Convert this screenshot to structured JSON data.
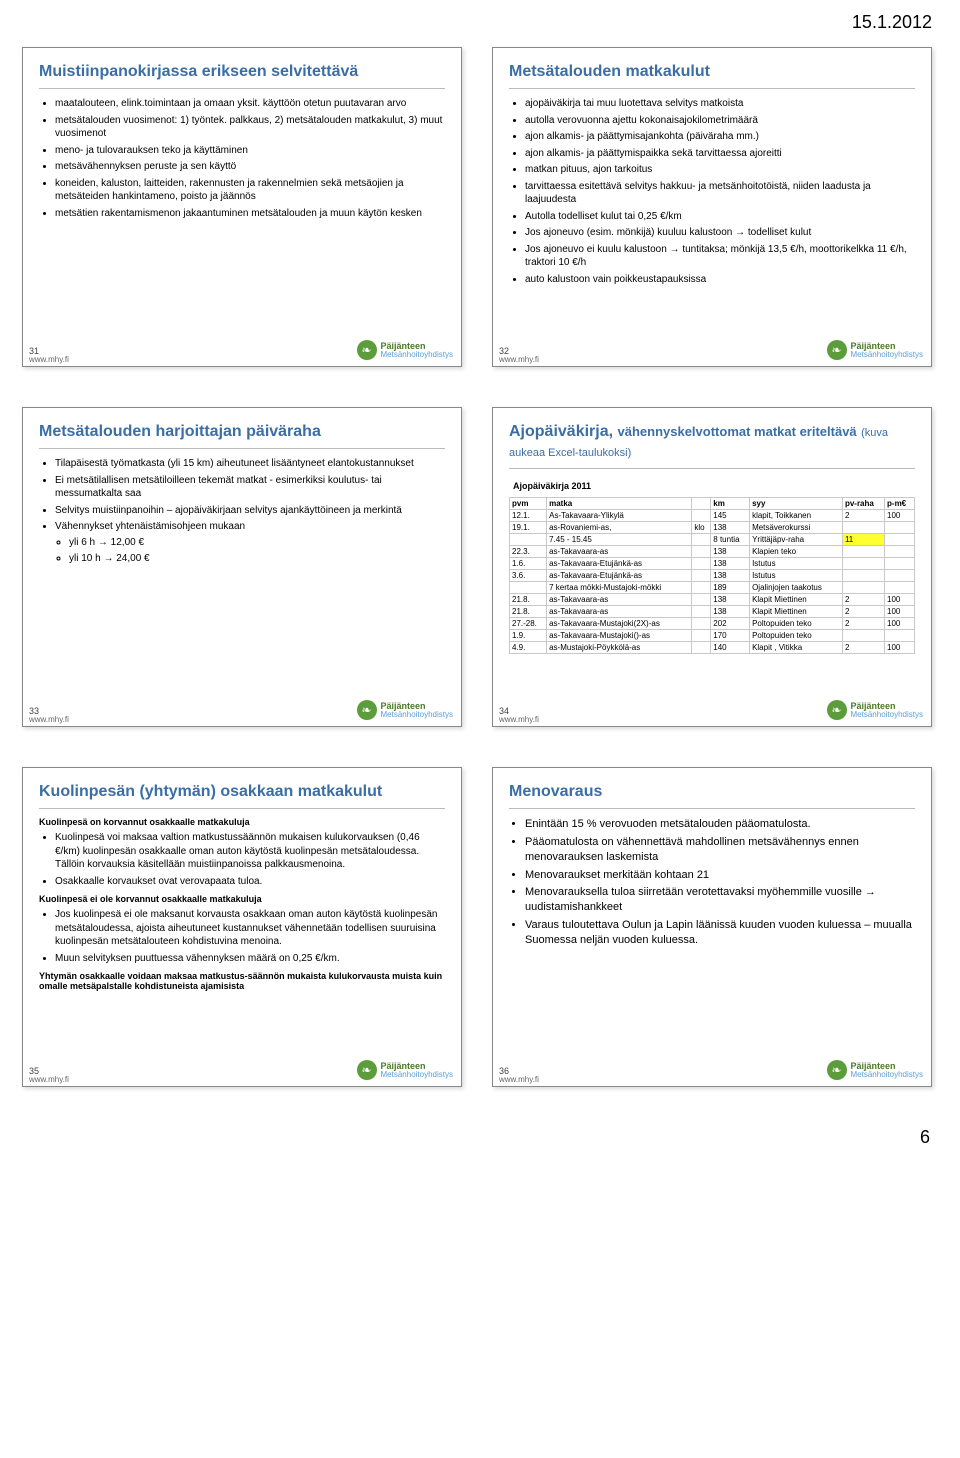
{
  "page": {
    "header_date": "15.1.2012",
    "footer_num": "6",
    "site": "www.mhy.fi"
  },
  "logo": {
    "org_top": "Päijänteen",
    "org_bot": "Metsänhoitoyhdistys"
  },
  "slide31": {
    "num": "31",
    "title": "Muistiinpanokirjassa erikseen selvitettävä",
    "items": [
      "maatalouteen, elink.toimintaan ja omaan yksit. käyttöön otetun puutavaran arvo",
      "metsätalouden vuosimenot: 1) työntek. palkkaus, 2) metsätalouden matkakulut, 3) muut vuosimenot",
      "meno- ja tulovarauksen teko ja käyttäminen",
      "metsävähennyksen peruste ja sen käyttö",
      "koneiden, kaluston, laitteiden, rakennusten ja rakennelmien sekä metsäojien ja metsäteiden hankintameno, poisto ja jäännös",
      "metsätien rakentamismenon jakaantuminen metsätalouden ja muun käytön kesken"
    ]
  },
  "slide32": {
    "num": "32",
    "title": "Metsätalouden matkakulut",
    "items": [
      "ajopäiväkirja tai muu luotettava selvitys matkoista",
      "autolla verovuonna ajettu kokonaisajokilometrimäärä",
      "ajon alkamis- ja päättymisajankohta  (päiväraha mm.)",
      "ajon alkamis- ja päättymispaikka sekä tarvittaessa ajoreitti",
      "matkan pituus, ajon tarkoitus",
      "tarvittaessa esitettävä selvitys hakkuu- ja  metsänhoitotöistä, niiden laadusta ja laajuudesta",
      "Autolla todelliset kulut tai 0,25 €/km",
      "Jos ajoneuvo (esim. mönkijä) kuuluu kalustoon → todelliset kulut",
      "Jos ajoneuvo ei kuulu kalustoon → tuntitaksa; mönkijä 13,5 €/h, moottorikelkka 11 €/h, traktori 10 €/h",
      "auto kalustoon vain poikkeustapauksissa"
    ]
  },
  "slide33": {
    "num": "33",
    "title": "Metsätalouden harjoittajan päiväraha",
    "items": [
      "Tilapäisestä työmatkasta (yli 15 km) aiheutuneet lisääntyneet elantokustannukset",
      "Ei metsätilallisen metsätiloilleen tekemät matkat - esimerkiksi koulutus- tai messumatkalta saa",
      "Selvitys muistiinpanoihin – ajopäiväkirjaan selvitys ajankäyttöineen ja merkintä",
      "Vähennykset yhtenäistämisohjeen mukaan"
    ],
    "sub": [
      "yli 6 h →    12,00 €",
      "yli 10 h →   24,00 €"
    ]
  },
  "slide34": {
    "num": "34",
    "title": "Ajopäiväkirja,",
    "title_cont": "vähennyskelvottomat matkat eriteltävä",
    "title_note": "(kuva aukeaa Excel-taulukoksi)",
    "caption": "Ajopäiväkirja 2011",
    "cols": [
      "pvm",
      "matka",
      "",
      "km",
      "syy",
      "pv-raha",
      "p-m€"
    ],
    "rows": [
      [
        "12.1.",
        "As-Takavaara-Ylikylä",
        "",
        "145",
        "klapit, Toikkanen",
        "2",
        "100"
      ],
      [
        "19.1.",
        "as-Rovaniemi-as,",
        "klo",
        "138",
        "Metsäverokurssi",
        "",
        ""
      ],
      [
        "",
        "7.45 - 15.45",
        "",
        "8 tuntia",
        "Yrittäjäpv-raha",
        "11",
        ""
      ],
      [
        "22.3.",
        "as-Takavaara-as",
        "",
        "138",
        "Klapien teko",
        "",
        ""
      ],
      [
        "1.6.",
        "as-Takavaara-Etujänkä-as",
        "",
        "138",
        "Istutus",
        "",
        ""
      ],
      [
        "3.6.",
        "as-Takavaara-Etujänkä-as",
        "",
        "138",
        "Istutus",
        "",
        ""
      ],
      [
        "",
        "7 kertaa mökki-Mustajoki-mökki",
        "",
        "189",
        "Ojalinjojen taakotus",
        "",
        ""
      ],
      [
        "21.8.",
        "as-Takavaara-as",
        "",
        "138",
        "Klapit Miettinen",
        "2",
        "100"
      ],
      [
        "21.8.",
        "as-Takavaara-as",
        "",
        "138",
        "Klapit Miettinen",
        "2",
        "100"
      ],
      [
        "27.-28.",
        "as-Takavaara-Mustajoki(2X)-as",
        "",
        "202",
        "Poltopuiden teko",
        "2",
        "100"
      ],
      [
        "1.9.",
        "as-Takavaara-Mustajoki()-as",
        "",
        "170",
        "Poltopuiden teko",
        "",
        ""
      ],
      [
        "4.9.",
        "as-Mustajoki-Pöykkölä-as",
        "",
        "140",
        "Klapit , Vitikka",
        "2",
        "100"
      ]
    ],
    "hl_row_idx": 2,
    "hl_col_idx": 5
  },
  "slide35": {
    "num": "35",
    "title": "Kuolinpesän (yhtymän) osakkaan matkakulut",
    "h1": "Kuolinpesä on korvannut osakkaalle matkakuluja",
    "g1": [
      "Kuolinpesä voi maksaa valtion matkustussäännön mukaisen kulukorvauksen (0,46 €/km) kuolinpesän osakkaalle oman auton käytöstä kuolinpesän metsätaloudessa. Tällöin korvauksia käsitellään muistiinpanoissa palkkausmenoina.",
      "Osakkaalle korvaukset ovat verovapaata tuloa."
    ],
    "h2": "Kuolinpesä ei ole korvannut osakkaalle matkakuluja",
    "g2": [
      "Jos kuolinpesä ei ole maksanut korvausta osakkaan oman auton käytöstä kuolinpesän metsätaloudessa, ajoista aiheutuneet kustannukset vähennetään todellisen suuruisina kuolinpesän metsätalouteen kohdistuvina menoina.",
      "Muun selvityksen puuttuessa vähennyksen määrä on 0,25 €/km."
    ],
    "tail": "Yhtymän osakkaalle voidaan maksaa matkustus-säännön mukaista kulukorvausta muista kuin omalle metsäpalstalle kohdistuneista ajamisista"
  },
  "slide36": {
    "num": "36",
    "title": "Menovaraus",
    "items": [
      "Enintään 15 % verovuoden metsätalouden pääomatulosta.",
      "Pääomatulosta on vähennettävä mahdollinen metsävähennys ennen menovarauksen laskemista",
      "Menovaraukset merkitään kohtaan 21",
      "Menovarauksella tuloa siirretään verotettavaksi myöhemmille vuosille →  uudistamishankkeet",
      "Varaus tuloutettava Oulun ja Lapin läänissä kuuden vuoden kuluessa – muualla Suomessa neljän vuoden kuluessa."
    ]
  }
}
